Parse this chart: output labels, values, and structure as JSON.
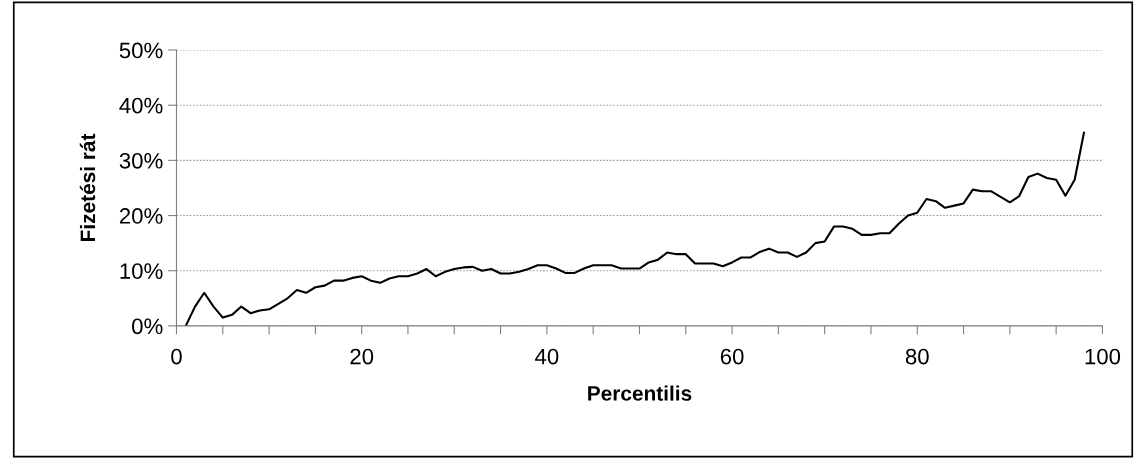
{
  "chart_data": {
    "type": "line",
    "xlabel": "Percentilis",
    "ylabel": "Fizetési rát",
    "color": "#000000",
    "x": [
      1,
      2,
      3,
      4,
      5,
      6,
      7,
      8,
      9,
      10,
      11,
      12,
      13,
      14,
      15,
      16,
      17,
      18,
      19,
      20,
      21,
      22,
      23,
      24,
      25,
      26,
      27,
      28,
      29,
      30,
      31,
      32,
      33,
      34,
      35,
      36,
      37,
      38,
      39,
      40,
      41,
      42,
      43,
      44,
      45,
      46,
      47,
      48,
      49,
      50,
      51,
      52,
      53,
      54,
      55,
      56,
      57,
      58,
      59,
      60,
      61,
      62,
      63,
      64,
      65,
      66,
      67,
      68,
      69,
      70,
      71,
      72,
      73,
      74,
      75,
      76,
      77,
      78,
      79,
      80,
      81,
      82,
      83,
      84,
      85,
      86,
      87,
      88,
      89,
      90,
      91,
      92,
      93,
      94,
      95,
      96,
      97,
      98
    ],
    "values": [
      0,
      3.5,
      6,
      3.5,
      1.5,
      2,
      3.5,
      2.3,
      2.8,
      3,
      4,
      5,
      6.5,
      6,
      7,
      7.3,
      8.2,
      8.2,
      8.7,
      9,
      8.2,
      7.8,
      8.6,
      9,
      9,
      9.5,
      10.3,
      9,
      9.8,
      10.3,
      10.6,
      10.7,
      10,
      10.3,
      9.5,
      9.5,
      9.8,
      10.3,
      11,
      11,
      10.4,
      9.6,
      9.6,
      10.4,
      11,
      11,
      11,
      10.4,
      10.4,
      10.4,
      11.5,
      12,
      13.3,
      13,
      13,
      11.3,
      11.3,
      11.3,
      10.8,
      11.5,
      12.4,
      12.4,
      13.4,
      14,
      13.3,
      13.3,
      12.5,
      13.3,
      15,
      15.3,
      18,
      18,
      17.6,
      16.5,
      16.5,
      16.8,
      16.8,
      18.5,
      20,
      20.5,
      23,
      22.6,
      21.4,
      21.8,
      22.2,
      24.7,
      24.4,
      24.4,
      23.4,
      22.4,
      23.5,
      27,
      27.6,
      26.8,
      26.5,
      23.6,
      26.5,
      35
    ],
    "xlim": [
      0,
      100
    ],
    "xticks": [
      0,
      {
        "value": 5,
        "label": null
      },
      {
        "value": 10,
        "label": null
      },
      {
        "value": 15,
        "label": null
      },
      20,
      {
        "value": 25,
        "label": null
      },
      {
        "value": 30,
        "label": null
      },
      {
        "value": 35,
        "label": null
      },
      40,
      {
        "value": 45,
        "label": null
      },
      {
        "value": 50,
        "label": null
      },
      {
        "value": 55,
        "label": null
      },
      60,
      {
        "value": 65,
        "label": null
      },
      {
        "value": 70,
        "label": null
      },
      {
        "value": 75,
        "label": null
      },
      80,
      {
        "value": 85,
        "label": null
      },
      {
        "value": 90,
        "label": null
      },
      {
        "value": 95,
        "label": null
      },
      100
    ],
    "ylim": [
      0,
      50
    ],
    "yticks": [
      {
        "value": 0,
        "label": "0%"
      },
      {
        "value": 10,
        "label": "10%"
      },
      {
        "value": 20,
        "label": "20%"
      },
      {
        "value": 30,
        "label": "30%"
      },
      {
        "value": 40,
        "label": "40%"
      },
      {
        "value": 50,
        "label": "50%"
      }
    ],
    "grid": "y",
    "marker": "none",
    "line_style": "solid",
    "legend": false
  }
}
